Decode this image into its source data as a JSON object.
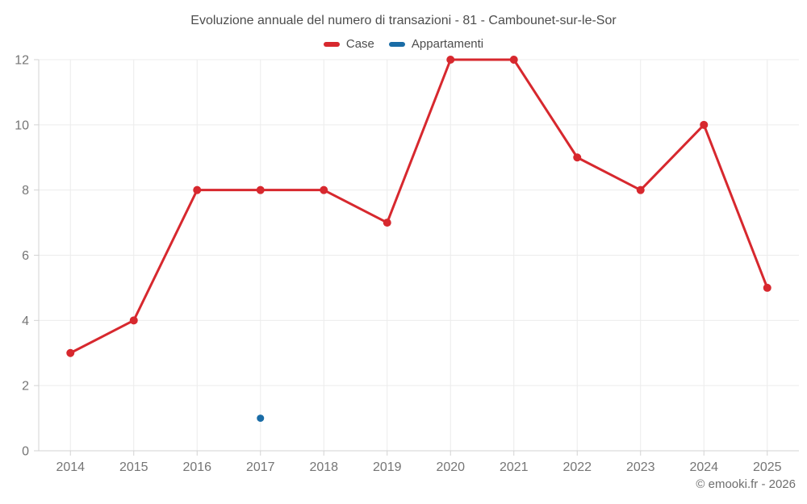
{
  "title": "Evoluzione annuale del numero di transazioni - 81 - Cambounet-sur-le-Sor",
  "footer": "© emooki.fr - 2026",
  "colors": {
    "case_red": "#d7282e",
    "appartamenti_blue": "#1a6ca6",
    "grid": "#ececec",
    "axis": "#d3d3d3",
    "tick_label": "#757575",
    "title_text": "#4d4d4d",
    "footer_text": "#6e6e6e"
  },
  "chart_data": {
    "type": "line",
    "title": "Evoluzione annuale del numero di transazioni - 81 - Cambounet-sur-le-Sor",
    "categories": [
      "2014",
      "2015",
      "2016",
      "2017",
      "2018",
      "2019",
      "2020",
      "2021",
      "2022",
      "2023",
      "2024",
      "2025"
    ],
    "series": [
      {
        "name": "Case",
        "color": "#d7282e",
        "values": [
          3,
          4,
          8,
          8,
          8,
          7,
          12,
          12,
          9,
          8,
          10,
          5
        ]
      },
      {
        "name": "Appartamenti",
        "color": "#1a6ca6",
        "values": [
          null,
          null,
          null,
          1,
          null,
          null,
          null,
          null,
          null,
          null,
          null,
          null
        ]
      }
    ],
    "xlabel": "",
    "ylabel": "",
    "ylim": [
      0,
      12
    ],
    "yticks": [
      0,
      2,
      4,
      6,
      8,
      10,
      12
    ],
    "grid": true,
    "legend_position": "top"
  }
}
